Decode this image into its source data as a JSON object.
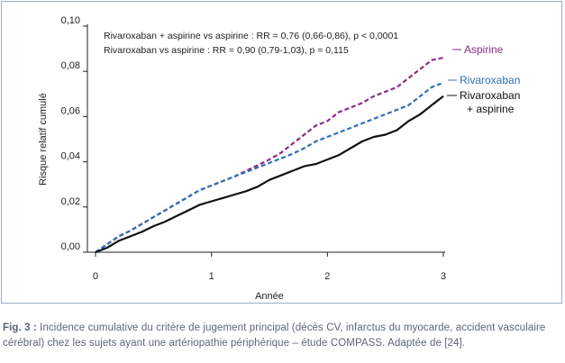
{
  "chart_data": {
    "type": "line",
    "xlabel": "Année",
    "ylabel": "Risque relatif cumulé",
    "xlim": [
      0,
      3
    ],
    "ylim": [
      0,
      0.1
    ],
    "x_ticks": [
      "0",
      "1",
      "2",
      "3"
    ],
    "y_ticks": [
      "0,00",
      "0,02",
      "0,04",
      "0,06",
      "0,08",
      "0,10"
    ],
    "annotations": [
      "Rivaroxaban + aspirine vs aspirine : RR = 0,76 (0,66-0,86), p < 0,0001",
      "Rivaroxaban vs aspirine : RR = 0,90 (0,79-1,03), p = 0,115"
    ],
    "series": [
      {
        "name": "Aspirine",
        "color": "#8e2a8a",
        "style": "dashed",
        "x": [
          0,
          0.1,
          0.2,
          0.3,
          0.4,
          0.5,
          0.6,
          0.7,
          0.8,
          0.9,
          1.0,
          1.1,
          1.2,
          1.3,
          1.4,
          1.5,
          1.6,
          1.7,
          1.8,
          1.9,
          2.0,
          2.1,
          2.2,
          2.3,
          2.4,
          2.5,
          2.6,
          2.7,
          2.8,
          2.9,
          3.0
        ],
        "values": [
          0,
          0.0035,
          0.007,
          0.0095,
          0.0125,
          0.0155,
          0.0185,
          0.0215,
          0.0245,
          0.0275,
          0.0295,
          0.0315,
          0.0335,
          0.036,
          0.0385,
          0.041,
          0.044,
          0.048,
          0.052,
          0.056,
          0.058,
          0.062,
          0.064,
          0.066,
          0.069,
          0.071,
          0.073,
          0.077,
          0.081,
          0.085,
          0.086
        ]
      },
      {
        "name": "Rivaroxaban",
        "color": "#2f6fb5",
        "style": "dashed",
        "x": [
          0,
          0.1,
          0.2,
          0.3,
          0.4,
          0.5,
          0.6,
          0.7,
          0.8,
          0.9,
          1.0,
          1.1,
          1.2,
          1.3,
          1.4,
          1.5,
          1.6,
          1.7,
          1.8,
          1.9,
          2.0,
          2.1,
          2.2,
          2.3,
          2.4,
          2.5,
          2.6,
          2.7,
          2.8,
          2.9,
          3.0
        ],
        "values": [
          0,
          0.0035,
          0.007,
          0.0095,
          0.0125,
          0.0155,
          0.0185,
          0.0215,
          0.0245,
          0.0275,
          0.0295,
          0.0315,
          0.0335,
          0.0355,
          0.0375,
          0.0395,
          0.0415,
          0.0435,
          0.046,
          0.049,
          0.051,
          0.053,
          0.055,
          0.057,
          0.059,
          0.061,
          0.063,
          0.065,
          0.069,
          0.073,
          0.075
        ]
      },
      {
        "name": "Rivaroxaban + aspirine",
        "color": "#111111",
        "style": "solid",
        "x": [
          0,
          0.1,
          0.2,
          0.3,
          0.4,
          0.5,
          0.6,
          0.7,
          0.8,
          0.9,
          1.0,
          1.1,
          1.2,
          1.3,
          1.4,
          1.5,
          1.6,
          1.7,
          1.8,
          1.9,
          2.0,
          2.1,
          2.2,
          2.3,
          2.4,
          2.5,
          2.6,
          2.7,
          2.8,
          2.9,
          3.0
        ],
        "values": [
          0,
          0.002,
          0.005,
          0.007,
          0.009,
          0.0115,
          0.0135,
          0.016,
          0.0185,
          0.021,
          0.0225,
          0.024,
          0.0255,
          0.027,
          0.029,
          0.032,
          0.034,
          0.036,
          0.038,
          0.039,
          0.041,
          0.043,
          0.046,
          0.049,
          0.051,
          0.052,
          0.054,
          0.058,
          0.061,
          0.065,
          0.069
        ]
      }
    ]
  },
  "caption": {
    "label": "Fig. 3 :",
    "text": " Incidence cumulative du critère de jugement principal (décès CV, infarctus du myocarde, accident vasculaire cérébral) chez les sujets ayant une artériopathie périphérique – étude COMPASS. Adaptée de [24]."
  }
}
